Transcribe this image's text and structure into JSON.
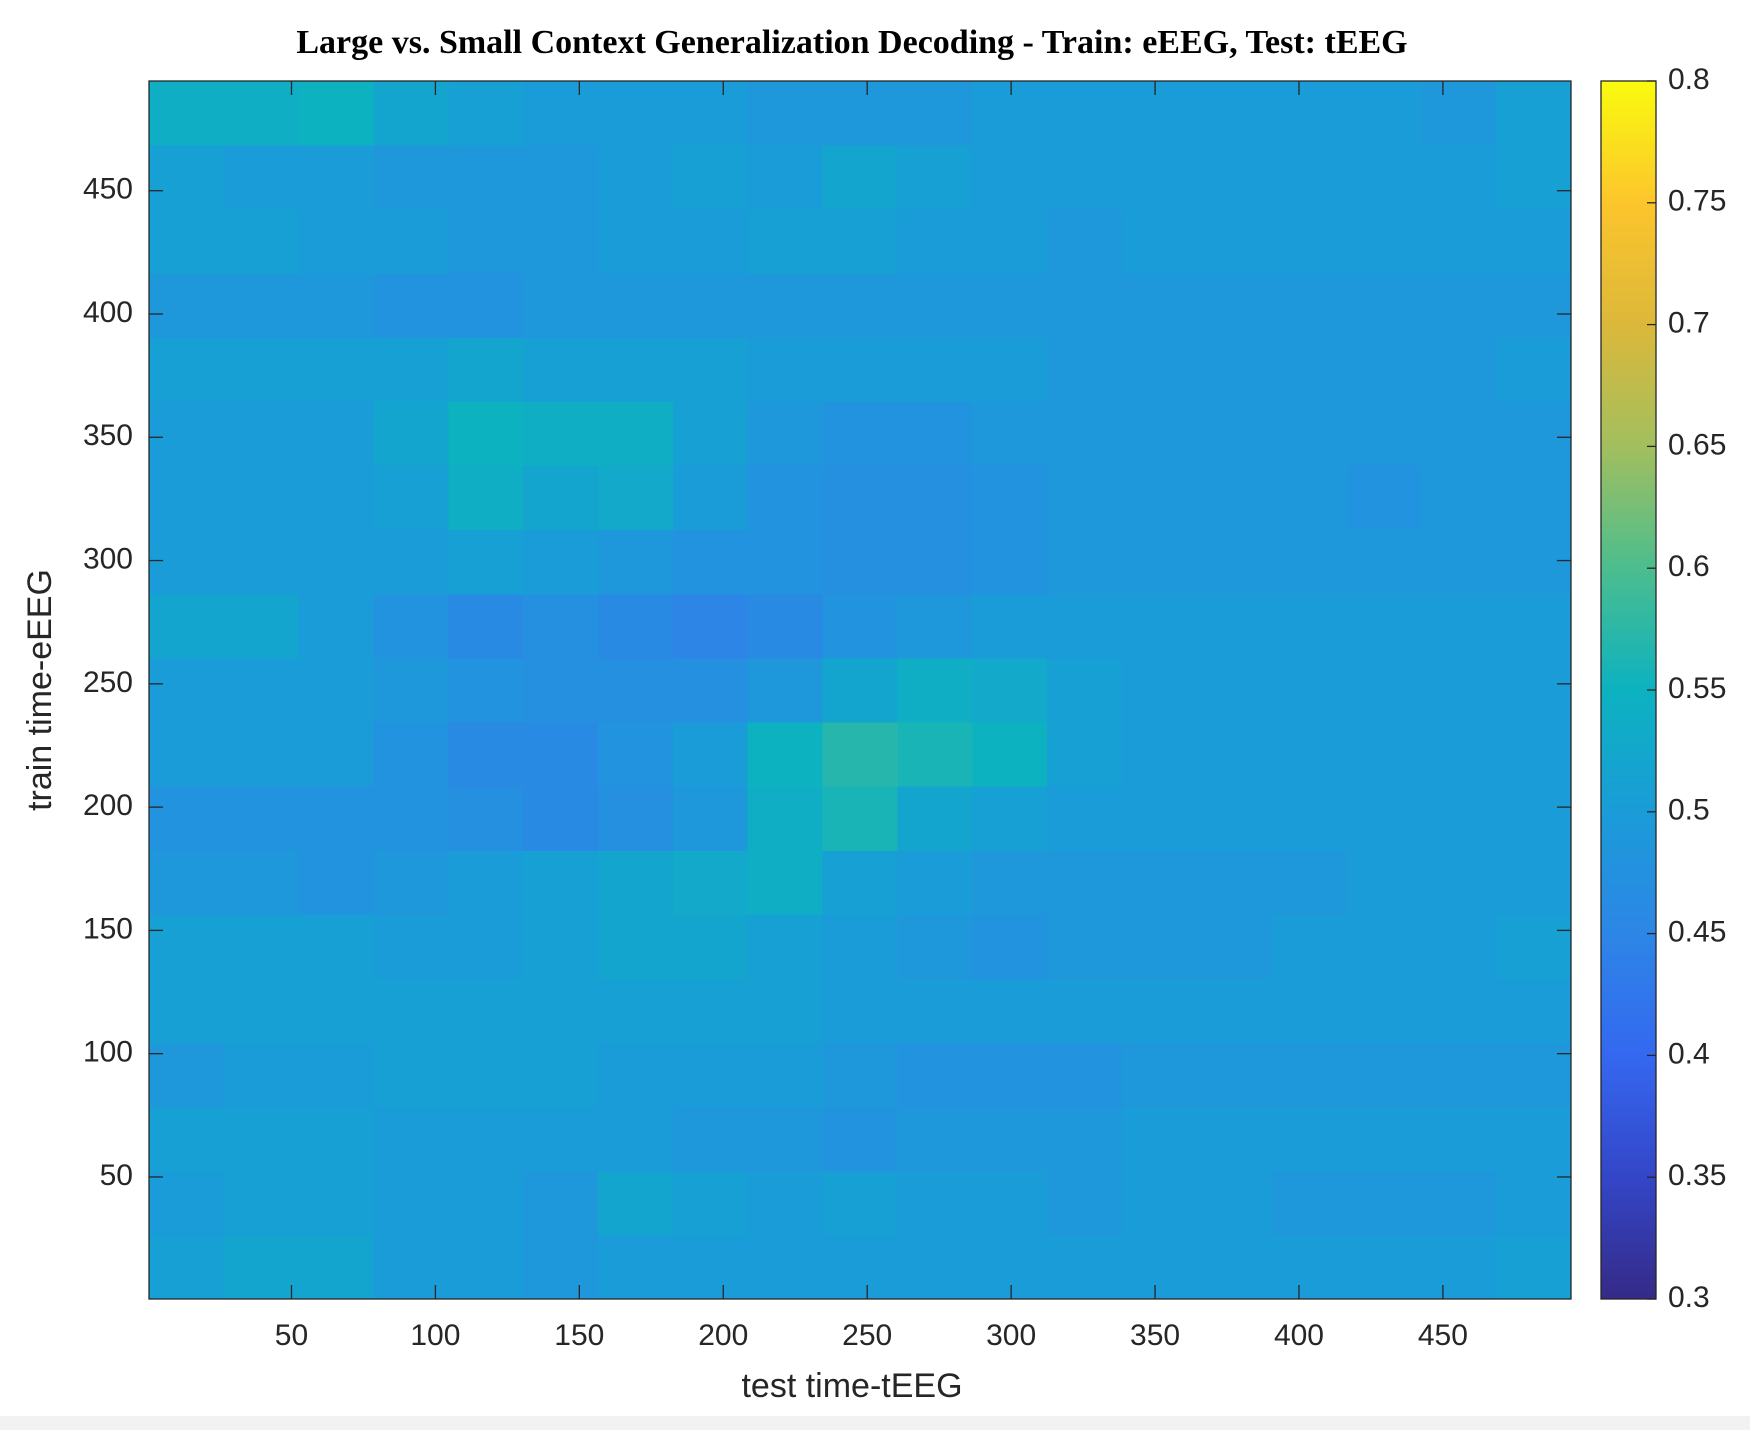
{
  "chart_data": {
    "type": "heatmap",
    "title": "Large vs. Small Context Generalization Decoding - Train: eEEG, Test: tEEG",
    "x_label": "test time-tEEG",
    "y_label": "train time-eEEG",
    "xbins": [
      0.5,
      26.5,
      52.5,
      78.5,
      104.5,
      130.5,
      156.5,
      182.5,
      208.5,
      234.5,
      260.5,
      286.5,
      312.5,
      338.5,
      364.5,
      390.5,
      416.5,
      442.5,
      468.5,
      494.5
    ],
    "ybins": [
      0.5,
      26.5,
      52.5,
      78.5,
      104.5,
      130.5,
      156.5,
      182.5,
      208.5,
      234.5,
      260.5,
      286.5,
      312.5,
      338.5,
      364.5,
      390.5,
      416.5,
      442.5,
      468.5,
      494.5
    ],
    "z": [
      [
        0.51,
        0.52,
        0.52,
        0.5,
        0.5,
        0.49,
        0.5,
        0.5,
        0.5,
        0.5,
        0.5,
        0.5,
        0.5,
        0.5,
        0.5,
        0.5,
        0.5,
        0.5,
        0.51
      ],
      [
        0.5,
        0.51,
        0.51,
        0.5,
        0.5,
        0.49,
        0.52,
        0.51,
        0.5,
        0.51,
        0.5,
        0.5,
        0.49,
        0.5,
        0.5,
        0.49,
        0.49,
        0.49,
        0.5
      ],
      [
        0.51,
        0.51,
        0.51,
        0.5,
        0.5,
        0.5,
        0.5,
        0.49,
        0.49,
        0.48,
        0.49,
        0.49,
        0.49,
        0.5,
        0.5,
        0.5,
        0.5,
        0.5,
        0.5
      ],
      [
        0.49,
        0.5,
        0.5,
        0.51,
        0.51,
        0.51,
        0.5,
        0.5,
        0.5,
        0.49,
        0.48,
        0.48,
        0.48,
        0.49,
        0.49,
        0.49,
        0.49,
        0.49,
        0.49
      ],
      [
        0.51,
        0.51,
        0.51,
        0.51,
        0.51,
        0.51,
        0.51,
        0.51,
        0.51,
        0.5,
        0.5,
        0.5,
        0.5,
        0.5,
        0.5,
        0.5,
        0.5,
        0.5,
        0.5
      ],
      [
        0.51,
        0.51,
        0.51,
        0.5,
        0.5,
        0.51,
        0.52,
        0.52,
        0.51,
        0.5,
        0.49,
        0.48,
        0.49,
        0.49,
        0.49,
        0.5,
        0.5,
        0.5,
        0.51
      ],
      [
        0.49,
        0.49,
        0.48,
        0.49,
        0.5,
        0.51,
        0.52,
        0.53,
        0.54,
        0.51,
        0.5,
        0.49,
        0.49,
        0.49,
        0.49,
        0.49,
        0.5,
        0.5,
        0.5
      ],
      [
        0.48,
        0.48,
        0.48,
        0.48,
        0.47,
        0.46,
        0.47,
        0.49,
        0.54,
        0.56,
        0.52,
        0.51,
        0.5,
        0.5,
        0.5,
        0.5,
        0.5,
        0.5,
        0.5
      ],
      [
        0.5,
        0.5,
        0.5,
        0.48,
        0.46,
        0.46,
        0.48,
        0.5,
        0.55,
        0.57,
        0.56,
        0.55,
        0.51,
        0.5,
        0.5,
        0.5,
        0.5,
        0.5,
        0.5
      ],
      [
        0.5,
        0.5,
        0.5,
        0.49,
        0.48,
        0.47,
        0.47,
        0.47,
        0.49,
        0.52,
        0.54,
        0.53,
        0.51,
        0.5,
        0.5,
        0.5,
        0.5,
        0.5,
        0.5
      ],
      [
        0.52,
        0.52,
        0.5,
        0.48,
        0.46,
        0.47,
        0.46,
        0.45,
        0.46,
        0.48,
        0.49,
        0.5,
        0.5,
        0.5,
        0.5,
        0.5,
        0.5,
        0.5,
        0.5
      ],
      [
        0.5,
        0.5,
        0.5,
        0.5,
        0.51,
        0.5,
        0.49,
        0.48,
        0.48,
        0.47,
        0.47,
        0.48,
        0.49,
        0.49,
        0.49,
        0.49,
        0.49,
        0.49,
        0.49
      ],
      [
        0.5,
        0.5,
        0.5,
        0.51,
        0.54,
        0.52,
        0.53,
        0.5,
        0.48,
        0.47,
        0.47,
        0.48,
        0.49,
        0.49,
        0.49,
        0.49,
        0.48,
        0.49,
        0.49
      ],
      [
        0.5,
        0.5,
        0.5,
        0.52,
        0.55,
        0.54,
        0.54,
        0.51,
        0.49,
        0.48,
        0.48,
        0.49,
        0.49,
        0.49,
        0.49,
        0.49,
        0.49,
        0.49,
        0.49
      ],
      [
        0.51,
        0.51,
        0.51,
        0.51,
        0.52,
        0.51,
        0.51,
        0.51,
        0.5,
        0.5,
        0.5,
        0.5,
        0.49,
        0.49,
        0.49,
        0.49,
        0.49,
        0.49,
        0.5
      ],
      [
        0.49,
        0.49,
        0.49,
        0.48,
        0.48,
        0.49,
        0.49,
        0.49,
        0.49,
        0.49,
        0.49,
        0.49,
        0.49,
        0.49,
        0.49,
        0.49,
        0.49,
        0.49,
        0.49
      ],
      [
        0.51,
        0.51,
        0.5,
        0.5,
        0.49,
        0.49,
        0.5,
        0.5,
        0.51,
        0.51,
        0.5,
        0.5,
        0.49,
        0.5,
        0.5,
        0.5,
        0.5,
        0.5,
        0.5
      ],
      [
        0.51,
        0.5,
        0.5,
        0.49,
        0.49,
        0.49,
        0.5,
        0.51,
        0.5,
        0.52,
        0.51,
        0.5,
        0.5,
        0.5,
        0.5,
        0.5,
        0.5,
        0.5,
        0.51
      ],
      [
        0.54,
        0.54,
        0.55,
        0.52,
        0.51,
        0.5,
        0.5,
        0.5,
        0.49,
        0.49,
        0.49,
        0.5,
        0.5,
        0.5,
        0.5,
        0.5,
        0.5,
        0.49,
        0.51
      ]
    ],
    "xlim": [
      0.5,
      494.5
    ],
    "ylim": [
      0.5,
      494.5
    ],
    "xticks": [
      50,
      100,
      150,
      200,
      250,
      300,
      350,
      400,
      450
    ],
    "yticks": [
      50,
      100,
      150,
      200,
      250,
      300,
      350,
      400,
      450
    ],
    "clim": [
      0.3,
      0.8
    ],
    "cticks": [
      0.3,
      0.35,
      0.4,
      0.45,
      0.5,
      0.55,
      0.6,
      0.65,
      0.7,
      0.75,
      0.8
    ]
  }
}
